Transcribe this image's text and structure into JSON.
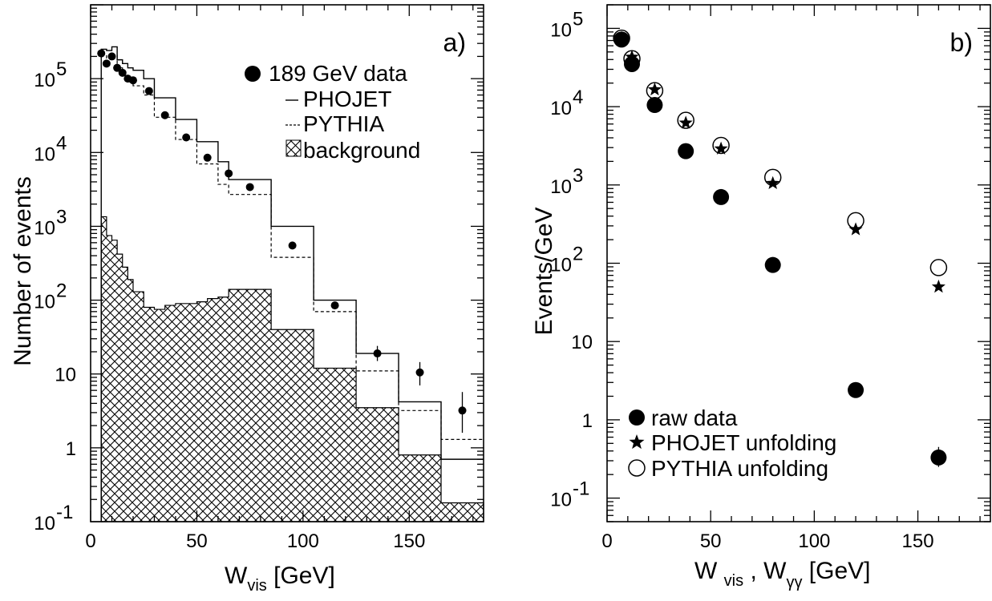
{
  "chart_data": [
    {
      "panel_label": "a)",
      "type": "histogram",
      "xlabel": "W",
      "xlabel_sub": "vis",
      "xlabel_unit": "[GeV]",
      "ylabel": "Number of events",
      "xlim": [
        0,
        185
      ],
      "ylim": [
        0.1,
        1000000
      ],
      "yscale": "log",
      "x_ticks": [
        0,
        50,
        100,
        150
      ],
      "x_tick_labels": [
        "0",
        "50",
        "100",
        "150"
      ],
      "y_tick_labels": [
        {
          "value": 100000,
          "base": "10",
          "exp": "5"
        },
        {
          "value": 10000,
          "base": "10",
          "exp": "4"
        },
        {
          "value": 1000,
          "base": "10",
          "exp": "3"
        },
        {
          "value": 100,
          "base": "10",
          "exp": "2"
        },
        {
          "value": 10,
          "base": "10",
          "exp": ""
        },
        {
          "value": 1,
          "base": "1",
          "exp": ""
        },
        {
          "value": 0.1,
          "base": "10",
          "exp": "-1"
        }
      ],
      "legend": {
        "placement": "top-right",
        "entries": [
          {
            "label": "189 GeV  data",
            "marker": "dot"
          },
          {
            "label": "PHOJET",
            "marker": "solid-line"
          },
          {
            "label": "PYTHIA",
            "marker": "dashed-line"
          },
          {
            "label": "background",
            "marker": "hatch"
          }
        ]
      },
      "series": [
        {
          "name": "189 GeV  data",
          "style": "points",
          "x": [
            5,
            7.5,
            10,
            12.5,
            15,
            17.5,
            20,
            27.5,
            35,
            45,
            55,
            65,
            75,
            95,
            115,
            135,
            155,
            175
          ],
          "y": [
            220000,
            160000,
            200000,
            140000,
            120000,
            100000,
            95000,
            68000,
            32000,
            16000,
            8500,
            5200,
            3400,
            550,
            85,
            19,
            10.5,
            3.2
          ],
          "err_low": [
            0,
            0,
            0,
            0,
            0,
            0,
            0,
            0,
            0,
            0,
            0,
            0,
            0,
            0,
            0,
            4,
            3.5,
            1.6
          ],
          "err_high": [
            0,
            0,
            0,
            0,
            0,
            0,
            0,
            0,
            0,
            0,
            0,
            0,
            0,
            0,
            0,
            5,
            4,
            2.5
          ]
        },
        {
          "name": "PHOJET",
          "style": "step-solid",
          "edges": [
            5,
            7.5,
            10,
            12.5,
            15,
            17.5,
            20,
            25,
            30,
            40,
            50,
            60,
            65,
            85,
            105,
            125,
            145,
            165,
            185
          ],
          "values": [
            250000,
            240000,
            270000,
            180000,
            160000,
            140000,
            130000,
            100000,
            55000,
            28000,
            14000,
            7500,
            4300,
            1000,
            100,
            19,
            4.2,
            0.7
          ]
        },
        {
          "name": "PYTHIA",
          "style": "step-dashed",
          "edges": [
            5,
            7.5,
            10,
            12.5,
            15,
            17.5,
            20,
            25,
            30,
            40,
            50,
            60,
            65,
            85,
            105,
            125,
            145,
            165,
            185
          ],
          "values": [
            210000,
            190000,
            210000,
            140000,
            110000,
            90000,
            80000,
            60000,
            30000,
            15000,
            7000,
            3700,
            2700,
            380,
            70,
            11,
            3.2,
            1.3
          ]
        },
        {
          "name": "background",
          "style": "hatch",
          "edges": [
            5,
            7.5,
            10,
            12.5,
            15,
            17.5,
            20,
            25,
            30,
            35,
            40,
            45,
            50,
            55,
            60,
            65,
            85,
            105,
            125,
            145,
            165,
            185
          ],
          "values": [
            1350,
            750,
            650,
            420,
            280,
            190,
            130,
            80,
            75,
            85,
            90,
            90,
            95,
            105,
            110,
            140,
            40,
            12,
            3.5,
            0.8,
            0.18
          ]
        }
      ]
    },
    {
      "panel_label": "b)",
      "type": "scatter",
      "xlabel": "W",
      "xlabel_sub": "vis",
      "xlabel_mid": " , W",
      "xlabel_sub2": "γγ",
      "xlabel_unit": "[GeV]",
      "ylabel": "Events/GeV",
      "xlim": [
        0,
        185
      ],
      "ylim": [
        0.05,
        200000
      ],
      "yscale": "log",
      "x_ticks": [
        0,
        50,
        100,
        150
      ],
      "x_tick_labels": [
        "0",
        "50",
        "100",
        "150"
      ],
      "y_tick_labels": [
        {
          "value": 100000,
          "base": "10",
          "exp": "5"
        },
        {
          "value": 10000,
          "base": "10",
          "exp": "4"
        },
        {
          "value": 1000,
          "base": "10",
          "exp": "3"
        },
        {
          "value": 100,
          "base": "10",
          "exp": "2"
        },
        {
          "value": 10,
          "base": "10",
          "exp": ""
        },
        {
          "value": 1,
          "base": "1",
          "exp": ""
        },
        {
          "value": 0.1,
          "base": "10",
          "exp": "-1"
        }
      ],
      "legend": {
        "placement": "bottom-left",
        "entries": [
          {
            "label": "raw data",
            "marker": "dot"
          },
          {
            "label": "PHOJET unfolding",
            "marker": "star"
          },
          {
            "label": "PYTHIA unfolding",
            "marker": "open-circle"
          }
        ]
      },
      "series": [
        {
          "name": "raw data",
          "marker": "dot",
          "x": [
            7,
            12,
            23,
            38,
            55,
            80,
            120,
            160
          ],
          "y": [
            72000,
            35000,
            10500,
            2700,
            700,
            95,
            2.4,
            0.33
          ],
          "err_low": [
            0,
            0,
            0,
            0,
            0,
            0,
            0,
            0.08
          ],
          "err_high": [
            0,
            0,
            0,
            0,
            0,
            0,
            0,
            0.12
          ]
        },
        {
          "name": "PHOJET unfolding",
          "marker": "star",
          "x": [
            7,
            12,
            23,
            38,
            55,
            80,
            120,
            160
          ],
          "y": [
            75000,
            43000,
            16500,
            6200,
            2900,
            1050,
            270,
            50
          ]
        },
        {
          "name": "PYTHIA unfolding",
          "marker": "open-circle",
          "x": [
            7,
            12,
            23,
            38,
            55,
            80,
            120,
            160
          ],
          "y": [
            75000,
            41000,
            16000,
            6700,
            3200,
            1250,
            350,
            88
          ]
        }
      ]
    }
  ]
}
